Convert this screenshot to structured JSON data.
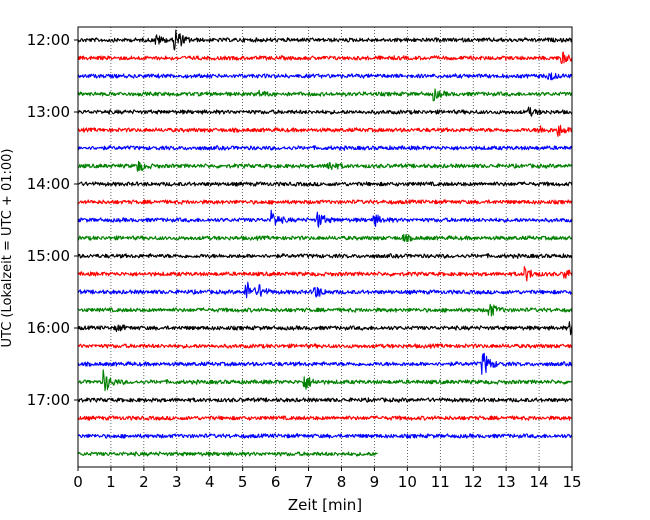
{
  "chart_data": {
    "type": "line",
    "title": "",
    "xlabel": "Zeit  [min]",
    "ylabel": "UTC (Lokalzeit = UTC + 01:00)",
    "xlim": [
      0,
      15
    ],
    "x_ticks": [
      "0",
      "1",
      "2",
      "3",
      "4",
      "5",
      "6",
      "7",
      "8",
      "9",
      "10",
      "11",
      "12",
      "13",
      "14",
      "15"
    ],
    "y_tick_labels": [
      "12:00",
      "13:00",
      "14:00",
      "15:00",
      "16:00",
      "17:00"
    ],
    "row_interval_min": 15,
    "start_time": "12:00",
    "row_colors": [
      "#000000",
      "#ff0000",
      "#0000ff",
      "#008000"
    ],
    "grid_x": true,
    "rows": [
      {
        "start": "12:00",
        "color": "#000000",
        "end_min": 15,
        "events": [
          {
            "t": 2.95,
            "amp": 1.4
          },
          {
            "t": 2.4,
            "amp": 0.5
          }
        ]
      },
      {
        "start": "12:15",
        "color": "#ff0000",
        "end_min": 15,
        "events": [
          {
            "t": 14.7,
            "amp": 0.6
          }
        ]
      },
      {
        "start": "12:30",
        "color": "#0000ff",
        "end_min": 15,
        "events": [
          {
            "t": 14.3,
            "amp": 0.5
          }
        ]
      },
      {
        "start": "12:45",
        "color": "#008000",
        "end_min": 15,
        "events": [
          {
            "t": 10.8,
            "amp": 0.6
          },
          {
            "t": 5.5,
            "amp": 0.3
          }
        ]
      },
      {
        "start": "13:00",
        "color": "#000000",
        "end_min": 15,
        "events": [
          {
            "t": 13.7,
            "amp": 0.4
          }
        ]
      },
      {
        "start": "13:15",
        "color": "#ff0000",
        "end_min": 15,
        "events": [
          {
            "t": 14.6,
            "amp": 0.6
          },
          {
            "t": 14.0,
            "amp": 0.4
          }
        ]
      },
      {
        "start": "13:30",
        "color": "#0000ff",
        "end_min": 15,
        "events": []
      },
      {
        "start": "13:45",
        "color": "#008000",
        "end_min": 15,
        "events": [
          {
            "t": 1.8,
            "amp": 0.7
          },
          {
            "t": 7.6,
            "amp": 0.6
          }
        ]
      },
      {
        "start": "14:00",
        "color": "#000000",
        "end_min": 15,
        "events": []
      },
      {
        "start": "14:15",
        "color": "#ff0000",
        "end_min": 15,
        "events": []
      },
      {
        "start": "14:30",
        "color": "#0000ff",
        "end_min": 15,
        "events": [
          {
            "t": 5.9,
            "amp": 0.9
          },
          {
            "t": 7.3,
            "amp": 0.8
          },
          {
            "t": 9.0,
            "amp": 0.6
          }
        ]
      },
      {
        "start": "14:45",
        "color": "#008000",
        "end_min": 15,
        "events": [
          {
            "t": 9.9,
            "amp": 0.3
          }
        ]
      },
      {
        "start": "15:00",
        "color": "#000000",
        "end_min": 15,
        "events": []
      },
      {
        "start": "15:15",
        "color": "#ff0000",
        "end_min": 15,
        "events": [
          {
            "t": 13.6,
            "amp": 0.7
          },
          {
            "t": 14.8,
            "amp": 0.5
          }
        ]
      },
      {
        "start": "15:30",
        "color": "#0000ff",
        "end_min": 15,
        "events": [
          {
            "t": 5.1,
            "amp": 1.3
          },
          {
            "t": 5.5,
            "amp": 0.6
          },
          {
            "t": 7.2,
            "amp": 0.7
          }
        ]
      },
      {
        "start": "15:45",
        "color": "#008000",
        "end_min": 15,
        "events": [
          {
            "t": 12.5,
            "amp": 0.8
          }
        ]
      },
      {
        "start": "16:00",
        "color": "#000000",
        "end_min": 15,
        "events": [
          {
            "t": 14.95,
            "amp": 0.6
          },
          {
            "t": 1.2,
            "amp": 0.3
          }
        ]
      },
      {
        "start": "16:15",
        "color": "#ff0000",
        "end_min": 15,
        "events": []
      },
      {
        "start": "16:30",
        "color": "#0000ff",
        "end_min": 15,
        "events": [
          {
            "t": 12.3,
            "amp": 1.4
          }
        ]
      },
      {
        "start": "16:45",
        "color": "#008000",
        "end_min": 15,
        "events": [
          {
            "t": 0.8,
            "amp": 1.2
          },
          {
            "t": 6.9,
            "amp": 0.8
          }
        ]
      },
      {
        "start": "17:00",
        "color": "#000000",
        "end_min": 15,
        "events": []
      },
      {
        "start": "17:15",
        "color": "#ff0000",
        "end_min": 15,
        "events": []
      },
      {
        "start": "17:30",
        "color": "#0000ff",
        "end_min": 15,
        "events": []
      },
      {
        "start": "17:45",
        "color": "#008000",
        "end_min": 9.1,
        "events": []
      }
    ]
  }
}
